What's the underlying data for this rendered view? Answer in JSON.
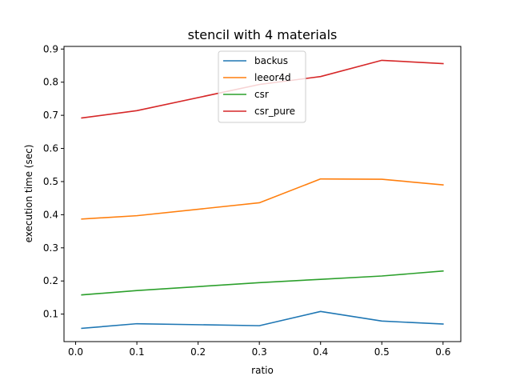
{
  "chart_data": {
    "type": "line",
    "title": "stencil with 4 materials",
    "xlabel": "ratio",
    "ylabel": "execution time (sec)",
    "xlim": [
      -0.019,
      0.629
    ],
    "ylim": [
      0.017,
      0.908
    ],
    "xticks": [
      0.0,
      0.1,
      0.2,
      0.3,
      0.4,
      0.5,
      0.6
    ],
    "xtick_labels": [
      "0.0",
      "0.1",
      "0.2",
      "0.3",
      "0.4",
      "0.5",
      "0.6"
    ],
    "yticks": [
      0.1,
      0.2,
      0.3,
      0.4,
      0.5,
      0.6,
      0.7,
      0.8,
      0.9
    ],
    "ytick_labels": [
      "0.1",
      "0.2",
      "0.3",
      "0.4",
      "0.5",
      "0.6",
      "0.7",
      "0.8",
      "0.9"
    ],
    "x": [
      0.01,
      0.1,
      0.3,
      0.4,
      0.5,
      0.6
    ],
    "grid": false,
    "legend_position": "upper center",
    "series": [
      {
        "name": "backus",
        "color": "#1f77b4",
        "values": [
          0.057,
          0.071,
          0.065,
          0.108,
          0.079,
          0.07
        ]
      },
      {
        "name": "leeor4d",
        "color": "#ff7f0e",
        "values": [
          0.387,
          0.397,
          0.436,
          0.508,
          0.507,
          0.49
        ]
      },
      {
        "name": "csr",
        "color": "#2ca02c",
        "values": [
          0.158,
          0.171,
          0.195,
          0.205,
          0.215,
          0.23
        ]
      },
      {
        "name": "csr_pure",
        "color": "#d62728",
        "values": [
          0.692,
          0.714,
          0.793,
          0.817,
          0.866,
          0.856
        ]
      }
    ]
  }
}
